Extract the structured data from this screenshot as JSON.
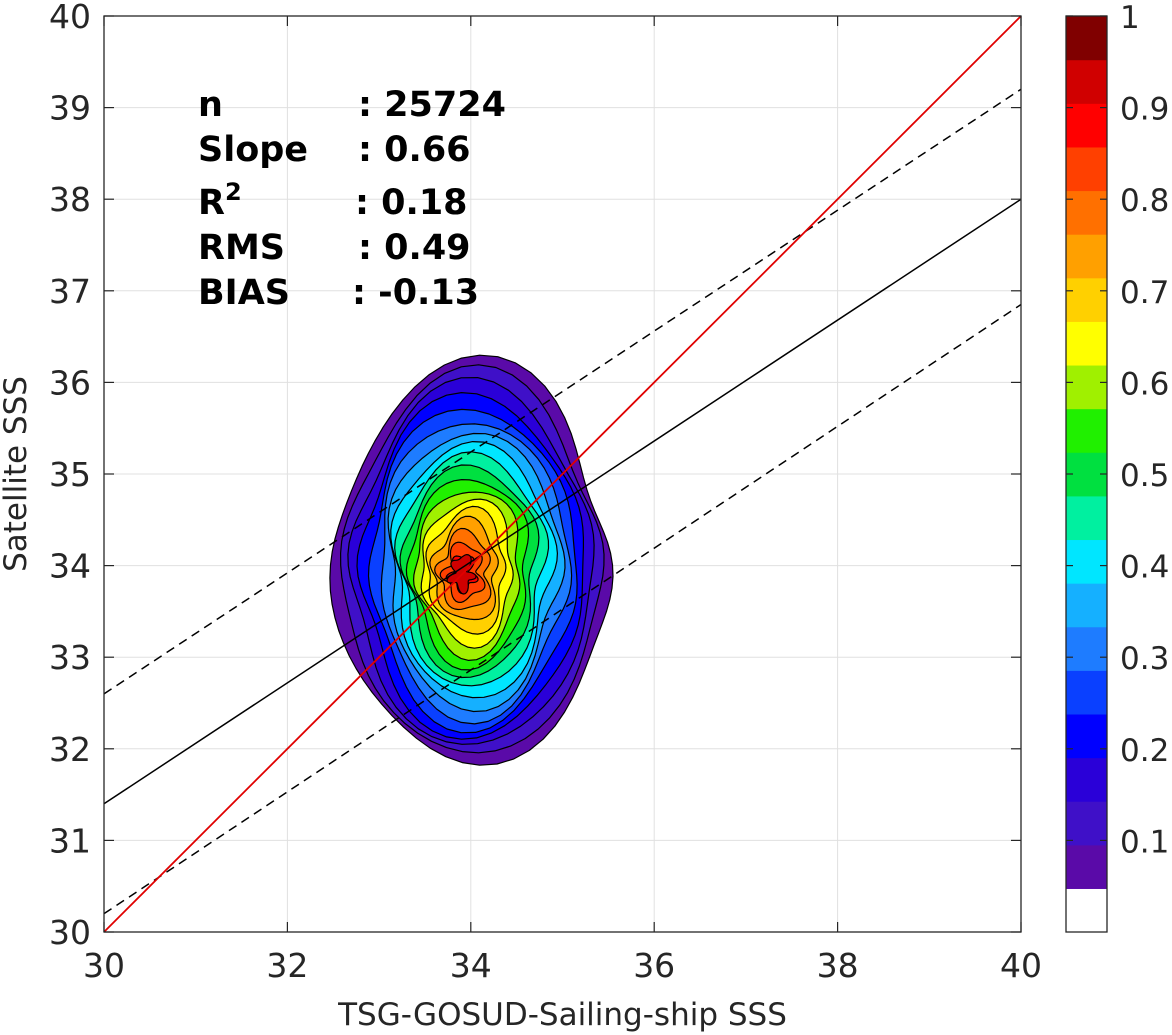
{
  "chart_data": {
    "type": "contour-scatter",
    "xlabel": "TSG-GOSUD-Sailing-ship SSS",
    "ylabel": "Satellite SSS",
    "xlim": [
      30,
      40
    ],
    "ylim": [
      30,
      40
    ],
    "xticks": [
      "30",
      "32",
      "34",
      "36",
      "38",
      "40"
    ],
    "yticks": [
      "30",
      "31",
      "32",
      "33",
      "34",
      "35",
      "36",
      "37",
      "38",
      "39",
      "40"
    ],
    "grid": true,
    "stats": [
      {
        "label": "n",
        "value": ": 25724"
      },
      {
        "label": "Slope",
        "value": ": 0.66"
      },
      {
        "label": "R",
        "sup": "2",
        "value": ": 0.18"
      },
      {
        "label": "RMS",
        "value": ": 0.49"
      },
      {
        "label": "BIAS",
        "value": ": -0.13"
      }
    ],
    "lines": {
      "identity": {
        "x": [
          30,
          40
        ],
        "y": [
          30,
          40
        ],
        "color": "#e00000"
      },
      "fit": {
        "x": [
          30,
          40
        ],
        "y": [
          31.4,
          38.0
        ],
        "color": "#000000"
      },
      "upper_bound": {
        "x": [
          30,
          40
        ],
        "y": [
          32.6,
          39.2
        ],
        "style": "dashed"
      },
      "lower_bound": {
        "x": [
          30,
          40
        ],
        "y": [
          30.2,
          36.85
        ],
        "style": "dashed"
      }
    },
    "density_peak": {
      "x": 33.9,
      "y": 33.9
    },
    "colorbar": {
      "ticks": [
        "0.1",
        "0.2",
        "0.3",
        "0.4",
        "0.5",
        "0.6",
        "0.7",
        "0.8",
        "0.9",
        "1"
      ],
      "tick_values": [
        0.1,
        0.2,
        0.3,
        0.4,
        0.5,
        0.6,
        0.7,
        0.8,
        0.9,
        1.0
      ],
      "range": [
        0,
        1
      ],
      "levels": [
        "#ffffff",
        "#5a0aa8",
        "#3f10c8",
        "#2a00d8",
        "#0000ff",
        "#0a40ff",
        "#1e7cff",
        "#15b0ff",
        "#00e6ff",
        "#00f0a0",
        "#00e040",
        "#20f000",
        "#a0f000",
        "#ffff00",
        "#ffd000",
        "#ffa000",
        "#ff7000",
        "#ff4000",
        "#ff0000",
        "#d00000",
        "#800000"
      ]
    }
  }
}
